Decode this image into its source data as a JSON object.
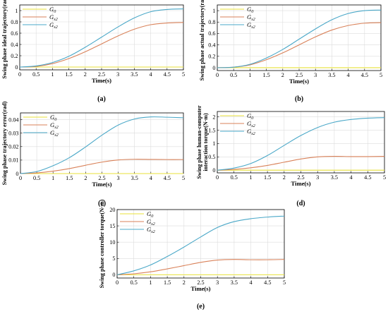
{
  "figure": {
    "colors": {
      "g0": "#e8e23a",
      "g1": "#d9825a",
      "g2": "#4aa8c8",
      "grid": "#dcdcdc",
      "axis": "#000000"
    }
  },
  "chart_data": [
    {
      "panel": "(a)",
      "type": "line",
      "ylabel": "Swing phase ideal trajectory(rad)",
      "xlabel": "Time(s)",
      "xlim": [
        0,
        5
      ],
      "ylim": [
        -0.05,
        1.1
      ],
      "xticks": [
        "0",
        "0.5",
        "1",
        "1.5",
        "2",
        "2.5",
        "3",
        "3.5",
        "4",
        "4.5",
        "5"
      ],
      "yticks": [
        "0",
        "0.2",
        "0.4",
        "0.6",
        "0.8",
        "1"
      ],
      "grid": true,
      "legend_position": "top-left",
      "x": [
        0,
        0.5,
        1,
        1.5,
        2,
        2.5,
        3,
        3.5,
        4,
        4.5,
        5
      ],
      "series": [
        {
          "name": "G",
          "sub": "0",
          "color": "#e8e23a",
          "values": [
            0,
            0,
            0,
            0,
            0,
            0,
            0,
            0,
            0,
            0,
            0
          ]
        },
        {
          "name": "G",
          "sub": "s2",
          "color": "#d9825a",
          "values": [
            0,
            0.01,
            0.06,
            0.15,
            0.27,
            0.41,
            0.55,
            0.67,
            0.75,
            0.78,
            0.79
          ]
        },
        {
          "name": "G",
          "sub": "s2",
          "color": "#4aa8c8",
          "values": [
            0,
            0.02,
            0.08,
            0.19,
            0.35,
            0.53,
            0.71,
            0.87,
            0.98,
            1.02,
            1.03
          ]
        }
      ]
    },
    {
      "panel": "(b)",
      "type": "line",
      "ylabel": "Swing phase actual trajectory(rad)",
      "xlabel": "Time(s)",
      "xlim": [
        0,
        5
      ],
      "ylim": [
        -0.05,
        1.1
      ],
      "xticks": [
        "0",
        "0.5",
        "1",
        "1.5",
        "2",
        "2.5",
        "3",
        "3.5",
        "4",
        "4.5",
        "5"
      ],
      "yticks": [
        "0",
        "0.2",
        "0.4",
        "0.6",
        "0.8",
        "1"
      ],
      "grid": true,
      "legend_position": "top-left",
      "x": [
        0,
        0.5,
        1,
        1.5,
        2,
        2.5,
        3,
        3.5,
        4,
        4.5,
        5
      ],
      "series": [
        {
          "name": "G",
          "sub": "0",
          "color": "#e8e23a",
          "values": [
            0,
            0,
            0,
            0,
            0,
            0,
            0,
            0,
            0,
            0,
            0
          ]
        },
        {
          "name": "G",
          "sub": "s2",
          "color": "#d9825a",
          "values": [
            0,
            0.01,
            0.05,
            0.14,
            0.26,
            0.4,
            0.54,
            0.66,
            0.74,
            0.78,
            0.79
          ]
        },
        {
          "name": "G",
          "sub": "s2",
          "color": "#4aa8c8",
          "values": [
            0,
            0.01,
            0.06,
            0.17,
            0.32,
            0.5,
            0.68,
            0.84,
            0.95,
            1.0,
            1.01
          ]
        }
      ]
    },
    {
      "panel": "(c)",
      "type": "line",
      "ylabel": "Swing phase trajectory error(rad)",
      "xlabel": "Time(s)",
      "xlim": [
        0,
        5
      ],
      "ylim": [
        0,
        0.045
      ],
      "xticks": [
        "0",
        "0.5",
        "1",
        "1.5",
        "2",
        "2.5",
        "3",
        "3.5",
        "4",
        "4.5",
        "5"
      ],
      "yticks": [
        "0",
        "0.01",
        "0.02",
        "0.03",
        "0.04"
      ],
      "grid": true,
      "legend_position": "top-left",
      "x": [
        0,
        0.5,
        1,
        1.5,
        2,
        2.5,
        3,
        3.5,
        4,
        4.5,
        5
      ],
      "series": [
        {
          "name": "G",
          "sub": "0",
          "color": "#e8e23a",
          "values": [
            0,
            0,
            0,
            0,
            0,
            0,
            0,
            0,
            0,
            0,
            0
          ]
        },
        {
          "name": "G",
          "sub": "s2",
          "color": "#d9825a",
          "values": [
            0,
            0.0005,
            0.0018,
            0.0037,
            0.0062,
            0.0085,
            0.0101,
            0.0106,
            0.0105,
            0.0104,
            0.0104
          ]
        },
        {
          "name": "G",
          "sub": "s2",
          "color": "#4aa8c8",
          "values": [
            0,
            0.0015,
            0.0058,
            0.0118,
            0.0198,
            0.0285,
            0.036,
            0.0405,
            0.042,
            0.0418,
            0.0414
          ]
        }
      ]
    },
    {
      "panel": "(d)",
      "type": "line",
      "ylabel": "Swing phase human-computer interaction torque(N·m)",
      "ylabel_lines": [
        "Swing phase human-computer",
        "interaction torque(N·m)"
      ],
      "xlabel": "Time(s)",
      "xlim": [
        0,
        5
      ],
      "ylim": [
        -0.1,
        2.2
      ],
      "xticks": [
        "0",
        "0.5",
        "1",
        "1.5",
        "2",
        "2.5",
        "3",
        "3.5",
        "4",
        "4.5",
        "5"
      ],
      "yticks": [
        "0",
        "0.5",
        "1",
        "1.5",
        "2"
      ],
      "grid": true,
      "legend_position": "top-left",
      "x": [
        0,
        0.5,
        1,
        1.5,
        2,
        2.5,
        3,
        3.5,
        4,
        4.5,
        5
      ],
      "series": [
        {
          "name": "G",
          "sub": "0",
          "color": "#e8e23a",
          "values": [
            0,
            0,
            0,
            0,
            0,
            0,
            0,
            0,
            0,
            0,
            0
          ]
        },
        {
          "name": "G",
          "sub": "s2",
          "color": "#d9825a",
          "values": [
            0,
            0.03,
            0.09,
            0.18,
            0.3,
            0.42,
            0.5,
            0.52,
            0.51,
            0.51,
            0.52
          ]
        },
        {
          "name": "G",
          "sub": "s2",
          "color": "#4aa8c8",
          "values": [
            0,
            0.08,
            0.25,
            0.55,
            0.93,
            1.3,
            1.6,
            1.8,
            1.9,
            1.95,
            1.97
          ]
        }
      ]
    },
    {
      "panel": "(e)",
      "type": "line",
      "ylabel": "Swing phase controller torque(N·m)",
      "xlabel": "Time(s)",
      "xlim": [
        0,
        5
      ],
      "ylim": [
        -1,
        20
      ],
      "xticks": [
        "0",
        "0.5",
        "1",
        "1.5",
        "2",
        "2.5",
        "3",
        "3.5",
        "4",
        "4.5",
        "5"
      ],
      "yticks": [
        "0",
        "5",
        "10",
        "15",
        "20"
      ],
      "grid": true,
      "legend_position": "top-left",
      "x": [
        0,
        0.5,
        1,
        1.5,
        2,
        2.5,
        3,
        3.5,
        4,
        4.5,
        5
      ],
      "series": [
        {
          "name": "G",
          "sub": "0",
          "color": "#e8e23a",
          "values": [
            0,
            0,
            0,
            0,
            0,
            0,
            0,
            0,
            0,
            0,
            0
          ]
        },
        {
          "name": "G",
          "sub": "s2",
          "color": "#d9825a",
          "values": [
            0,
            0.3,
            0.9,
            1.8,
            2.8,
            3.8,
            4.5,
            4.7,
            4.6,
            4.6,
            4.7
          ]
        },
        {
          "name": "G",
          "sub": "s2",
          "color": "#4aa8c8",
          "values": [
            0,
            1.2,
            3.0,
            5.6,
            8.5,
            11.6,
            14.5,
            16.3,
            17.2,
            17.7,
            18.0
          ]
        }
      ]
    }
  ]
}
